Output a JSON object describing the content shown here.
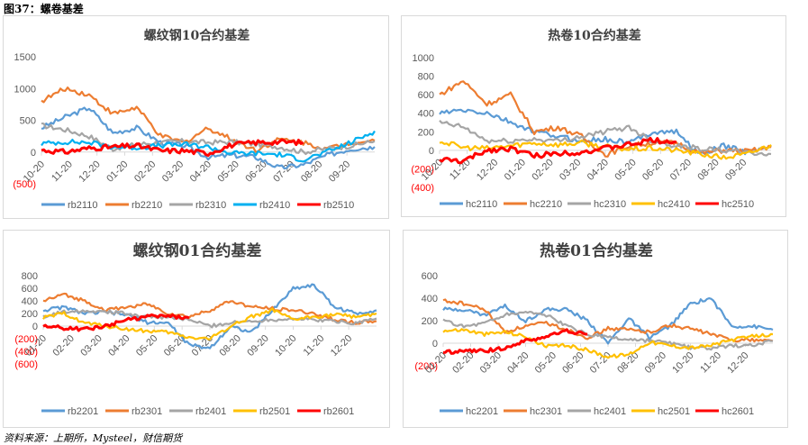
{
  "figure_title": "图37：螺卷基差",
  "source": "资料来源：上期所，Mysteel，财信期货",
  "colors": {
    "blue": "#5b9bd5",
    "orange": "#ed7d31",
    "gray": "#a5a5a5",
    "cyan": "#00b0f0",
    "yellow": "#ffc000",
    "red": "#ff0000",
    "negative_tick": "#ff0000",
    "axis": "#d9d9d9"
  },
  "chart_data": [
    {
      "id": "rb10",
      "type": "line",
      "title": "螺纹钢10合约基差",
      "xlabel": "",
      "ylabel": "",
      "categories": [
        "10-20",
        "11-20",
        "12-20",
        "01-20",
        "02-20",
        "03-20",
        "04-20",
        "05-20",
        "06-20",
        "07-20",
        "08-20",
        "09-20"
      ],
      "y_ticks": [
        "1500",
        "1000",
        "500",
        "0",
        "(500)"
      ],
      "y_tick_values": [
        1500,
        1000,
        500,
        0,
        -500
      ],
      "ylim": [
        -500,
        1500
      ],
      "grid": false,
      "legend": "bottom",
      "series": [
        {
          "name": "rb2110",
          "color": "#5b9bd5",
          "values": [
            380,
            550,
            700,
            300,
            380,
            150,
            100,
            -80,
            -50,
            -80,
            -250,
            -200,
            -50,
            50,
            80
          ]
        },
        {
          "name": "rb2210",
          "color": "#ed7d31",
          "values": [
            800,
            1000,
            900,
            600,
            700,
            250,
            150,
            380,
            200,
            30,
            200,
            150,
            50,
            150,
            180
          ]
        },
        {
          "name": "rb2310",
          "color": "#a5a5a5",
          "values": [
            420,
            350,
            250,
            50,
            120,
            150,
            170,
            150,
            160,
            120,
            80,
            0,
            50,
            100,
            170
          ]
        },
        {
          "name": "rb2410",
          "color": "#00b0f0",
          "values": [
            130,
            160,
            150,
            80,
            70,
            100,
            120,
            80,
            -20,
            -20,
            -40,
            -120,
            0,
            150,
            330
          ]
        },
        {
          "name": "rb2510",
          "color": "#ff0000",
          "values": [
            30,
            0,
            60,
            80,
            100,
            20,
            20,
            -20,
            110,
            150,
            160,
            150,
            null,
            null,
            null
          ]
        }
      ]
    },
    {
      "id": "hc10",
      "type": "line",
      "title": "热卷10合约基差",
      "xlabel": "",
      "ylabel": "",
      "categories": [
        "10-20",
        "11-20",
        "12-20",
        "01-20",
        "02-20",
        "03-20",
        "04-20",
        "05-20",
        "06-20",
        "07-20",
        "08-20",
        "09-20"
      ],
      "y_ticks": [
        "1000",
        "800",
        "600",
        "400",
        "200",
        "0",
        "(200)",
        "(400)"
      ],
      "y_tick_values": [
        1000,
        800,
        600,
        400,
        200,
        0,
        -200,
        -400
      ],
      "ylim": [
        -400,
        1000
      ],
      "grid": false,
      "legend": "bottom",
      "series": [
        {
          "name": "hc2110",
          "color": "#5b9bd5",
          "values": [
            400,
            430,
            400,
            300,
            200,
            150,
            100,
            120,
            80,
            200,
            200,
            -50,
            50,
            -20,
            50
          ]
        },
        {
          "name": "hc2210",
          "color": "#ed7d31",
          "values": [
            600,
            750,
            500,
            600,
            200,
            250,
            150,
            -50,
            50,
            80,
            80,
            -30,
            0,
            -10,
            30
          ]
        },
        {
          "name": "hc2310",
          "color": "#a5a5a5",
          "values": [
            300,
            250,
            100,
            100,
            120,
            100,
            150,
            200,
            250,
            100,
            50,
            20,
            0,
            -30,
            -40
          ]
        },
        {
          "name": "hc2410",
          "color": "#ffc000",
          "values": [
            100,
            30,
            20,
            50,
            80,
            60,
            80,
            40,
            10,
            20,
            0,
            -40,
            -80,
            -40,
            60
          ]
        },
        {
          "name": "hc2510",
          "color": "#ff0000",
          "values": [
            -100,
            -120,
            0,
            20,
            -60,
            -30,
            -20,
            20,
            60,
            110,
            90,
            null,
            null,
            null,
            null
          ]
        }
      ]
    },
    {
      "id": "rb01",
      "type": "line",
      "title": "螺纹钢01合约基差",
      "xlabel": "",
      "ylabel": "",
      "categories": [
        "01-20",
        "02-20",
        "03-20",
        "04-20",
        "05-20",
        "06-20",
        "07-20",
        "08-20",
        "09-20",
        "10-20",
        "11-20",
        "12-20"
      ],
      "y_ticks": [
        "800",
        "600",
        "400",
        "200",
        "0",
        "(200)",
        "(400)",
        "(600)"
      ],
      "y_tick_values": [
        800,
        600,
        400,
        200,
        0,
        -200,
        -400,
        -600
      ],
      "ylim": [
        -600,
        800
      ],
      "grid": false,
      "legend": "bottom",
      "series": [
        {
          "name": "rb2201",
          "color": "#5b9bd5",
          "values": [
            250,
            300,
            200,
            220,
            180,
            60,
            50,
            -300,
            -350,
            0,
            -100,
            250,
            600,
            650,
            300,
            200,
            250
          ]
        },
        {
          "name": "rb2301",
          "color": "#ed7d31",
          "values": [
            400,
            500,
            400,
            250,
            300,
            350,
            200,
            150,
            250,
            400,
            300,
            280,
            250,
            200,
            100,
            50,
            80
          ]
        },
        {
          "name": "rb2401",
          "color": "#a5a5a5",
          "values": [
            150,
            230,
            250,
            230,
            200,
            150,
            130,
            100,
            0,
            50,
            80,
            100,
            120,
            100,
            80,
            50,
            120
          ]
        },
        {
          "name": "rb2501",
          "color": "#ffc000",
          "values": [
            130,
            200,
            50,
            0,
            -50,
            -80,
            -100,
            -180,
            -200,
            0,
            150,
            250,
            100,
            150,
            180,
            150,
            200
          ]
        },
        {
          "name": "rb2601",
          "color": "#ff0000",
          "values": [
            0,
            -30,
            -50,
            0,
            100,
            150,
            160,
            130,
            null,
            null,
            null,
            null,
            null,
            null,
            null,
            null,
            null
          ]
        }
      ]
    },
    {
      "id": "hc01",
      "type": "line",
      "title": "热卷01合约基差",
      "xlabel": "",
      "ylabel": "",
      "categories": [
        "01-20",
        "02-20",
        "03-20",
        "04-20",
        "05-20",
        "06-20",
        "07-20",
        "08-20",
        "09-20",
        "10-20",
        "11-20",
        "12-20"
      ],
      "y_ticks": [
        "600",
        "400",
        "200",
        "0",
        "(200)"
      ],
      "y_tick_values": [
        600,
        400,
        200,
        0,
        -200
      ],
      "ylim": [
        -200,
        600
      ],
      "grid": false,
      "legend": "bottom",
      "series": [
        {
          "name": "hc2201",
          "color": "#5b9bd5",
          "values": [
            300,
            300,
            250,
            330,
            200,
            300,
            300,
            200,
            0,
            220,
            50,
            150,
            350,
            400,
            150,
            150,
            120
          ]
        },
        {
          "name": "hc2301",
          "color": "#ed7d31",
          "values": [
            380,
            350,
            300,
            100,
            150,
            180,
            120,
            50,
            130,
            120,
            100,
            160,
            130,
            80,
            30,
            30,
            20
          ]
        },
        {
          "name": "hc2401",
          "color": "#a5a5a5",
          "values": [
            200,
            150,
            180,
            250,
            280,
            250,
            150,
            80,
            50,
            30,
            20,
            0,
            -40,
            -50,
            -20,
            -20,
            20
          ]
        },
        {
          "name": "hc2501",
          "color": "#ffc000",
          "values": [
            110,
            120,
            80,
            100,
            60,
            -30,
            -20,
            -60,
            -120,
            -100,
            10,
            -20,
            -40,
            -20,
            30,
            60,
            80
          ]
        },
        {
          "name": "hc2601",
          "color": "#ff0000",
          "values": [
            -80,
            -70,
            -70,
            -40,
            20,
            60,
            110,
            80,
            null,
            null,
            null,
            null,
            null,
            null,
            null,
            null,
            null
          ]
        }
      ]
    }
  ]
}
